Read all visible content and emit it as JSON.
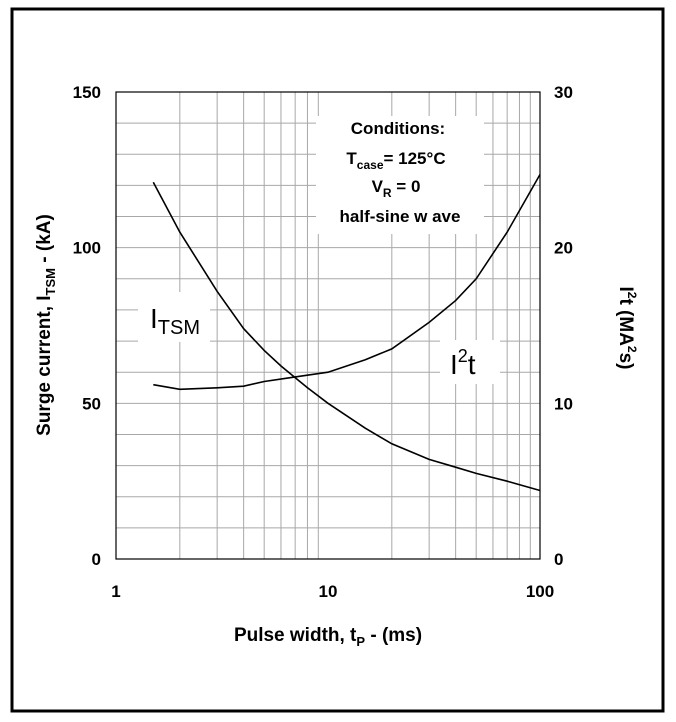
{
  "chart_data": {
    "type": "line",
    "x_scale": "log",
    "xlim": [
      1,
      100
    ],
    "xticks": [
      "1",
      "10",
      "100"
    ],
    "ylim_left": [
      0,
      150
    ],
    "yticks_left": [
      "0",
      "50",
      "100",
      "150"
    ],
    "ylim_right": [
      0,
      30
    ],
    "yticks_right": [
      "0",
      "10",
      "20",
      "30"
    ],
    "grid": true,
    "xlabel": {
      "main": "Pulse width, t",
      "sub": "P",
      "tail": " - (ms)"
    },
    "ylabel_left": {
      "main": "Surge current, I",
      "sub": "TSM",
      "tail": " -  (kA)"
    },
    "ylabel_right": {
      "main": "I",
      "sup": "2",
      "tail": "t (MA",
      "sup2": "2",
      "tail2": "s)"
    },
    "annotation": {
      "line1": "Conditions:",
      "line2_main": "T",
      "line2_sub": "case",
      "line2_tail": "= 125°C",
      "line3_main": "V",
      "line3_sub": "R",
      "line3_tail": " = 0",
      "line4": "half-sine w ave"
    },
    "series": [
      {
        "name_main": "I",
        "name_sub": "TSM",
        "axis": "left",
        "x": [
          1.5,
          2,
          3,
          4,
          5,
          6,
          8,
          10,
          15,
          20,
          30,
          40,
          50,
          70,
          100
        ],
        "y": [
          121,
          105,
          86,
          74,
          67,
          62,
          55,
          50,
          42,
          37,
          32,
          29.5,
          27.5,
          25,
          22
        ]
      },
      {
        "name_main": "I",
        "name_sup": "2",
        "name_tail": "t",
        "axis": "right",
        "x": [
          1.5,
          2,
          3,
          4,
          5,
          7,
          10,
          15,
          20,
          30,
          40,
          50,
          70,
          100
        ],
        "y": [
          11.2,
          10.9,
          11.0,
          11.1,
          11.4,
          11.7,
          12.0,
          12.8,
          13.5,
          15.2,
          16.6,
          18.0,
          21.0,
          24.7
        ]
      }
    ]
  }
}
